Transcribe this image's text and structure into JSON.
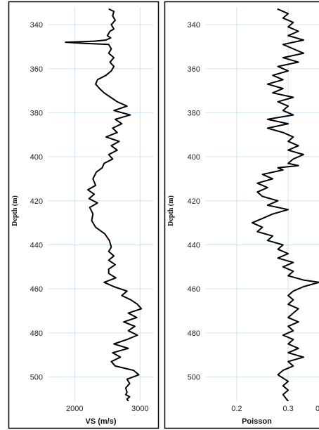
{
  "chart_data": [
    {
      "type": "line",
      "xlabel": "VS (m/s)",
      "ylabel": "Depth (m)",
      "xlim": [
        1600,
        3200
      ],
      "ylim": [
        511,
        332
      ],
      "y_inverted": true,
      "grid": true,
      "legend": "none",
      "line_color": "#000000",
      "grid_color": "#cfe3f2",
      "xticks": [
        2000,
        3000
      ],
      "xtick_labels": [
        "2000",
        "3000"
      ],
      "yticks": [
        340,
        360,
        380,
        400,
        420,
        440,
        460,
        480,
        500
      ],
      "ytick_labels": [
        "340",
        "360",
        "380",
        "400",
        "420",
        "440",
        "460",
        "480",
        "500"
      ],
      "series": [
        {
          "x": [
            2530,
            2600,
            2580,
            2620,
            2560,
            2600,
            2540,
            2500,
            2550,
            2480,
            2300,
            1860,
            2150,
            2520,
            2560,
            2520,
            2600,
            2540,
            2600,
            2560,
            2480,
            2350,
            2320,
            2380,
            2450,
            2550,
            2650,
            2800,
            2600,
            2850,
            2620,
            2720,
            2580,
            2650,
            2480,
            2680,
            2560,
            2650,
            2520,
            2580,
            2450,
            2420,
            2330,
            2280,
            2320,
            2200,
            2300,
            2220,
            2350,
            2230,
            2280,
            2260,
            2320,
            2460,
            2530,
            2560,
            2520,
            2600,
            2520,
            2620,
            2520,
            2520,
            2630,
            2450,
            2600,
            2800,
            2720,
            2860,
            2960,
            3020,
            2820,
            2950,
            2750,
            2920,
            2820,
            2960,
            2800,
            2600,
            2820,
            2580,
            2700,
            2560,
            2620,
            2900,
            2980,
            2800,
            2840,
            2780,
            2800,
            2780,
            2840,
            2800,
            2820
          ],
          "y": [
            333,
            334,
            336,
            338,
            340,
            342,
            343,
            345,
            346,
            347,
            347.5,
            348,
            348.5,
            349,
            351,
            353,
            355,
            357,
            359,
            361,
            363,
            365,
            367,
            369,
            371,
            373,
            375,
            377,
            379,
            381,
            383,
            385,
            387,
            389,
            391,
            393,
            395,
            397,
            399,
            401,
            403,
            405,
            407,
            410,
            413,
            415,
            417,
            419,
            421,
            423,
            426,
            429,
            432,
            435,
            438,
            441,
            443,
            445,
            447,
            449,
            451,
            453,
            455,
            457,
            459,
            461,
            463,
            465,
            467,
            469,
            471,
            473,
            475,
            477,
            479,
            481,
            483,
            485,
            487,
            489,
            491,
            493,
            495,
            497,
            499,
            501,
            503,
            505,
            507,
            508,
            509,
            510,
            511
          ]
        }
      ]
    },
    {
      "type": "line",
      "xlabel": "Poisson",
      "ylabel": "Depth (m)",
      "xlim": [
        0.14,
        0.36
      ],
      "ylim": [
        511,
        332
      ],
      "y_inverted": true,
      "grid": true,
      "legend": "none",
      "line_color": "#000000",
      "grid_color": "#cfe3f2",
      "xticks": [
        0.2,
        0.3
      ],
      "xtick_labels": [
        "0.2",
        "0.3"
      ],
      "edge_tick_label": "0",
      "yticks": [
        340,
        360,
        380,
        400,
        420,
        440,
        460,
        480,
        500
      ],
      "ytick_labels": [
        "340",
        "360",
        "380",
        "400",
        "420",
        "440",
        "460",
        "480",
        "500"
      ],
      "series": [
        {
          "x": [
            0.28,
            0.3,
            0.29,
            0.31,
            0.3,
            0.32,
            0.3,
            0.33,
            0.29,
            0.31,
            0.33,
            0.29,
            0.32,
            0.28,
            0.3,
            0.27,
            0.29,
            0.26,
            0.29,
            0.27,
            0.31,
            0.28,
            0.3,
            0.29,
            0.31,
            0.26,
            0.3,
            0.26,
            0.29,
            0.31,
            0.3,
            0.32,
            0.3,
            0.33,
            0.31,
            0.3,
            0.32,
            0.28,
            0.29,
            0.25,
            0.27,
            0.24,
            0.26,
            0.24,
            0.25,
            0.28,
            0.26,
            0.3,
            0.27,
            0.25,
            0.23,
            0.25,
            0.24,
            0.27,
            0.26,
            0.29,
            0.28,
            0.3,
            0.28,
            0.31,
            0.29,
            0.31,
            0.3,
            0.33,
            0.36,
            0.33,
            0.31,
            0.3,
            0.31,
            0.3,
            0.32,
            0.31,
            0.3,
            0.32,
            0.3,
            0.31,
            0.29,
            0.31,
            0.3,
            0.32,
            0.3,
            0.33,
            0.3,
            0.31,
            0.29,
            0.28,
            0.3,
            0.29,
            0.3,
            0.29,
            0.3
          ],
          "y": [
            333,
            335,
            337,
            339,
            341,
            343,
            345,
            347,
            349,
            351,
            353,
            355,
            357,
            359,
            361,
            363,
            365,
            367,
            369,
            371,
            373,
            375,
            377,
            379,
            381,
            383,
            385,
            387,
            389,
            391,
            393,
            395,
            397,
            399,
            401,
            403,
            404,
            405,
            406,
            408,
            410,
            412,
            414,
            416,
            418,
            420,
            422,
            424,
            426,
            428,
            430,
            432,
            434,
            436,
            438,
            440,
            442,
            444,
            446,
            448,
            450,
            452,
            454,
            456,
            457,
            459,
            461,
            463,
            465,
            467,
            469,
            471,
            473,
            475,
            477,
            479,
            481,
            483,
            485,
            487,
            489,
            491,
            493,
            495,
            497,
            499,
            502,
            504,
            506,
            508,
            511
          ]
        }
      ]
    }
  ]
}
